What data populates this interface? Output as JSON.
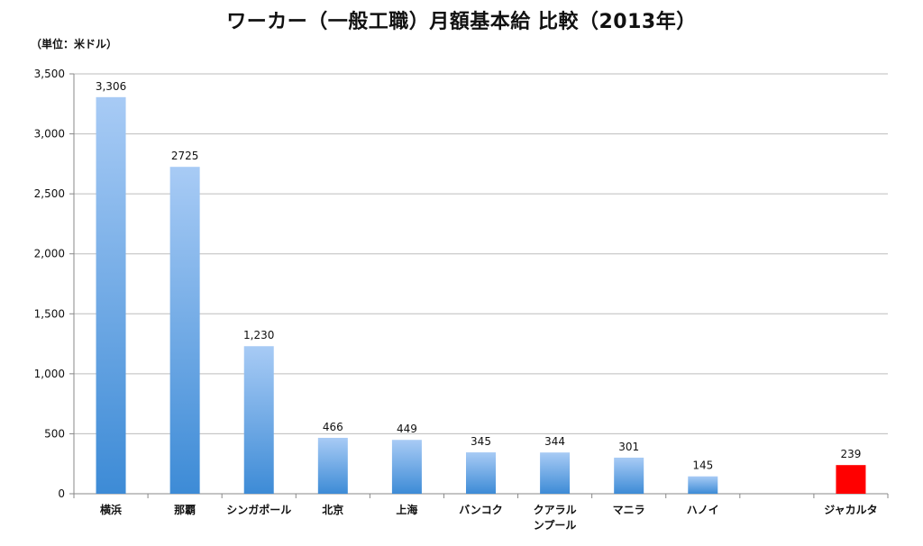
{
  "chart_data": {
    "type": "bar",
    "title": "ワーカー（一般工職）月額基本給 比較（2013年）",
    "unit_label": "（単位：米ドル）",
    "categories": [
      "横浜",
      "那覇",
      "シンガポール",
      "北京",
      "上海",
      "バンコク",
      "クアラルンプール",
      "マニラ",
      "ハノイ",
      "",
      "ジャカルタ"
    ],
    "category_labels": [
      [
        "横浜"
      ],
      [
        "那覇"
      ],
      [
        "シンガポール"
      ],
      [
        "北京"
      ],
      [
        "上海"
      ],
      [
        "バンコク"
      ],
      [
        "クアラル",
        "ンプール"
      ],
      [
        "マニラ"
      ],
      [
        "ハノイ"
      ],
      [],
      [
        "ジャカルタ"
      ]
    ],
    "values": [
      3306,
      2725,
      1230,
      466,
      449,
      345,
      344,
      301,
      145,
      null,
      239
    ],
    "value_labels": [
      "3,306",
      "2725",
      "1,230",
      "466",
      "449",
      "345",
      "344",
      "301",
      "145",
      "",
      "239"
    ],
    "ylim": [
      0,
      3500
    ],
    "yticks": [
      0,
      500,
      1000,
      1500,
      2000,
      2500,
      3000,
      3500
    ],
    "ytick_labels": [
      "0",
      "500",
      "1,000",
      "1,500",
      "2,000",
      "2,500",
      "3,000",
      "3,500"
    ],
    "grid": true,
    "colors": {
      "bar_top": "#a8cbf5",
      "bar_bottom": "#3d8bd6",
      "highlight": "#ff0000",
      "grid": "#bdbdbd",
      "axis": "#888888"
    },
    "highlight_index": 10
  }
}
